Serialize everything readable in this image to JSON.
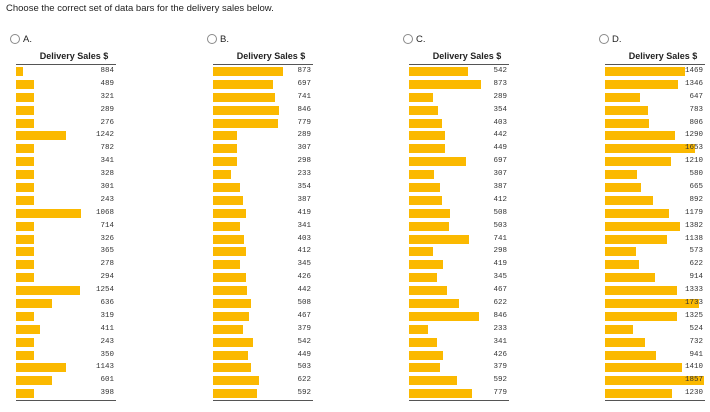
{
  "question": "Choose the correct set of data bars for the delivery sales below.",
  "column_title": "Delivery Sales $",
  "bar_color": "#fbb900",
  "options": [
    {
      "letter": "A.",
      "rows": [
        {
          "value": "884",
          "fill": 0.07
        },
        {
          "value": "489",
          "fill": 0.18
        },
        {
          "value": "321",
          "fill": 0.18
        },
        {
          "value": "289",
          "fill": 0.18
        },
        {
          "value": "276",
          "fill": 0.18
        },
        {
          "value": "1242",
          "fill": 0.5
        },
        {
          "value": "782",
          "fill": 0.18
        },
        {
          "value": "341",
          "fill": 0.18
        },
        {
          "value": "328",
          "fill": 0.18
        },
        {
          "value": "301",
          "fill": 0.18
        },
        {
          "value": "243",
          "fill": 0.18
        },
        {
          "value": "1068",
          "fill": 0.65
        },
        {
          "value": "714",
          "fill": 0.18
        },
        {
          "value": "326",
          "fill": 0.18
        },
        {
          "value": "365",
          "fill": 0.18
        },
        {
          "value": "278",
          "fill": 0.18
        },
        {
          "value": "294",
          "fill": 0.18
        },
        {
          "value": "1254",
          "fill": 0.64
        },
        {
          "value": "636",
          "fill": 0.36
        },
        {
          "value": "319",
          "fill": 0.18
        },
        {
          "value": "411",
          "fill": 0.24
        },
        {
          "value": "243",
          "fill": 0.18
        },
        {
          "value": "350",
          "fill": 0.18
        },
        {
          "value": "1143",
          "fill": 0.5
        },
        {
          "value": "601",
          "fill": 0.36
        },
        {
          "value": "398",
          "fill": 0.18
        }
      ]
    },
    {
      "letter": "B.",
      "rows": [
        {
          "value": "873",
          "fill": 0.7
        },
        {
          "value": "697",
          "fill": 0.6
        },
        {
          "value": "741",
          "fill": 0.62
        },
        {
          "value": "846",
          "fill": 0.66
        },
        {
          "value": "779",
          "fill": 0.65
        },
        {
          "value": "289",
          "fill": 0.24
        },
        {
          "value": "307",
          "fill": 0.24
        },
        {
          "value": "298",
          "fill": 0.24
        },
        {
          "value": "233",
          "fill": 0.18
        },
        {
          "value": "354",
          "fill": 0.27
        },
        {
          "value": "387",
          "fill": 0.3
        },
        {
          "value": "419",
          "fill": 0.33
        },
        {
          "value": "341",
          "fill": 0.27
        },
        {
          "value": "403",
          "fill": 0.31
        },
        {
          "value": "412",
          "fill": 0.33
        },
        {
          "value": "345",
          "fill": 0.27
        },
        {
          "value": "426",
          "fill": 0.33
        },
        {
          "value": "442",
          "fill": 0.34
        },
        {
          "value": "508",
          "fill": 0.38
        },
        {
          "value": "467",
          "fill": 0.36
        },
        {
          "value": "379",
          "fill": 0.3
        },
        {
          "value": "542",
          "fill": 0.4
        },
        {
          "value": "449",
          "fill": 0.35
        },
        {
          "value": "503",
          "fill": 0.38
        },
        {
          "value": "622",
          "fill": 0.46
        },
        {
          "value": "592",
          "fill": 0.44
        }
      ]
    },
    {
      "letter": "C.",
      "rows": [
        {
          "value": "542",
          "fill": 0.59
        },
        {
          "value": "873",
          "fill": 0.72
        },
        {
          "value": "289",
          "fill": 0.24
        },
        {
          "value": "354",
          "fill": 0.29
        },
        {
          "value": "403",
          "fill": 0.33
        },
        {
          "value": "442",
          "fill": 0.36
        },
        {
          "value": "449",
          "fill": 0.36
        },
        {
          "value": "697",
          "fill": 0.57
        },
        {
          "value": "307",
          "fill": 0.25
        },
        {
          "value": "387",
          "fill": 0.31
        },
        {
          "value": "412",
          "fill": 0.33
        },
        {
          "value": "508",
          "fill": 0.41
        },
        {
          "value": "503",
          "fill": 0.4
        },
        {
          "value": "741",
          "fill": 0.6
        },
        {
          "value": "298",
          "fill": 0.24
        },
        {
          "value": "419",
          "fill": 0.34
        },
        {
          "value": "345",
          "fill": 0.28
        },
        {
          "value": "467",
          "fill": 0.38
        },
        {
          "value": "622",
          "fill": 0.5
        },
        {
          "value": "846",
          "fill": 0.7
        },
        {
          "value": "233",
          "fill": 0.19
        },
        {
          "value": "341",
          "fill": 0.28
        },
        {
          "value": "426",
          "fill": 0.34
        },
        {
          "value": "379",
          "fill": 0.31
        },
        {
          "value": "592",
          "fill": 0.48
        },
        {
          "value": "779",
          "fill": 0.63
        }
      ]
    },
    {
      "letter": "D.",
      "rows": [
        {
          "value": "1469",
          "fill": 0.8
        },
        {
          "value": "1346",
          "fill": 0.73
        },
        {
          "value": "647",
          "fill": 0.35
        },
        {
          "value": "783",
          "fill": 0.43
        },
        {
          "value": "806",
          "fill": 0.44
        },
        {
          "value": "1290",
          "fill": 0.7
        },
        {
          "value": "1653",
          "fill": 0.9
        },
        {
          "value": "1210",
          "fill": 0.66
        },
        {
          "value": "580",
          "fill": 0.32
        },
        {
          "value": "665",
          "fill": 0.36
        },
        {
          "value": "892",
          "fill": 0.48
        },
        {
          "value": "1179",
          "fill": 0.64
        },
        {
          "value": "1382",
          "fill": 0.75
        },
        {
          "value": "1138",
          "fill": 0.62
        },
        {
          "value": "573",
          "fill": 0.31
        },
        {
          "value": "622",
          "fill": 0.34
        },
        {
          "value": "914",
          "fill": 0.5
        },
        {
          "value": "1333",
          "fill": 0.72
        },
        {
          "value": "1733",
          "fill": 0.94
        },
        {
          "value": "1325",
          "fill": 0.72
        },
        {
          "value": "524",
          "fill": 0.28
        },
        {
          "value": "732",
          "fill": 0.4
        },
        {
          "value": "941",
          "fill": 0.51
        },
        {
          "value": "1410",
          "fill": 0.77
        },
        {
          "value": "1857",
          "fill": 0.99
        },
        {
          "value": "1230",
          "fill": 0.67
        }
      ]
    }
  ]
}
